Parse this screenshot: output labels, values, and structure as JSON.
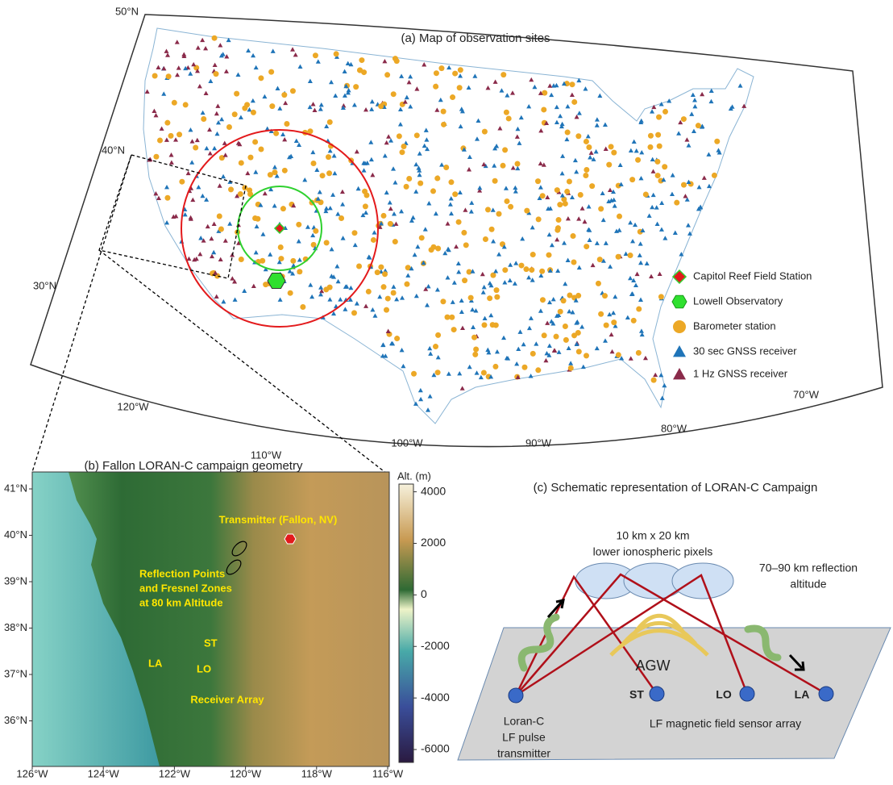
{
  "panel_a": {
    "title": "(a) Map of observation sites",
    "lat_labels": [
      "50°N",
      "40°N",
      "30°N"
    ],
    "lon_labels": [
      "120°W",
      "110°W",
      "100°W",
      "90°W",
      "80°W",
      "70°W"
    ],
    "legend": [
      "Capitol Reef Field Station",
      "Lowell Observatory",
      "Barometer station",
      "30 sec GNSS receiver",
      "1 Hz GNSS receiver"
    ]
  },
  "panel_b": {
    "title": "(b) Fallon LORAN-C campaign geometry",
    "lat_labels": [
      "41°N",
      "40°N",
      "39°N",
      "38°N",
      "37°N",
      "36°N"
    ],
    "lon_labels": [
      "126°W",
      "124°W",
      "122°W",
      "120°W",
      "118°W",
      "116°W"
    ],
    "colorbar": {
      "label": "Alt. (m)",
      "lim": [
        -6500,
        4300
      ],
      "ticks": [
        4000,
        2000,
        0,
        -2000,
        -4000,
        -6000
      ]
    },
    "annotations": [
      "Transmitter (Fallon, NV)",
      "Reflection Points",
      "and Fresnel Zones",
      "at 80 km Altitude",
      "Receiver Array"
    ],
    "sites": [
      "ST",
      "LA",
      "LO"
    ]
  },
  "panel_c": {
    "title": "(c) Schematic representation of LORAN-C Campaign",
    "labels": [
      "10 km x 20 km",
      "lower ionospheric pixels",
      "70–90 km reflection",
      "altitude",
      "AGW",
      "Loran-C",
      "LF pulse",
      "transmitter",
      "LF magnetic field sensor array"
    ],
    "receivers": [
      "ST",
      "LO",
      "LA"
    ]
  }
}
